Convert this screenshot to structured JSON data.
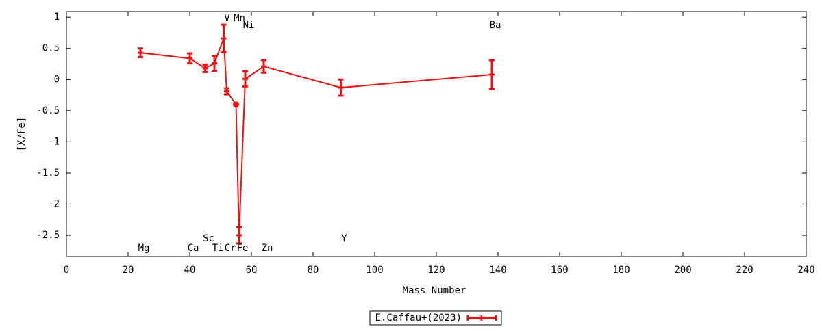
{
  "chart_data": {
    "type": "line",
    "x_label": "Mass Number",
    "y_label": "[X/Fe]",
    "xlim": [
      0,
      240
    ],
    "xticks": [
      0,
      20,
      40,
      60,
      80,
      100,
      120,
      140,
      160,
      180,
      200,
      220,
      240
    ],
    "ylim": [
      -2.84,
      1.09
    ],
    "yticks": [
      1,
      0.5,
      0,
      -0.5,
      -1,
      -1.5,
      -2,
      -2.5
    ],
    "legend_position": "bottom",
    "series": [
      {
        "name": "E.Caffau+(2023)",
        "color": "#ee1111",
        "x": [
          24,
          40,
          45,
          48,
          51,
          52,
          55,
          56,
          58,
          64,
          89,
          138
        ],
        "values": [
          0.43,
          0.34,
          0.18,
          0.26,
          0.66,
          -0.19,
          -0.4,
          -2.5,
          0.01,
          0.21,
          -0.13,
          0.08
        ],
        "errors": [
          0.07,
          0.08,
          0.06,
          0.12,
          0.22,
          0.05,
          null,
          0.13,
          0.12,
          0.1,
          0.13,
          0.23
        ],
        "point_labels": [
          "Mg",
          "Ca",
          "Sc",
          "Ti",
          "V",
          "Cr",
          "Mn",
          "Fe",
          "Ni",
          "Zn",
          "Y",
          "Ba"
        ]
      }
    ]
  }
}
